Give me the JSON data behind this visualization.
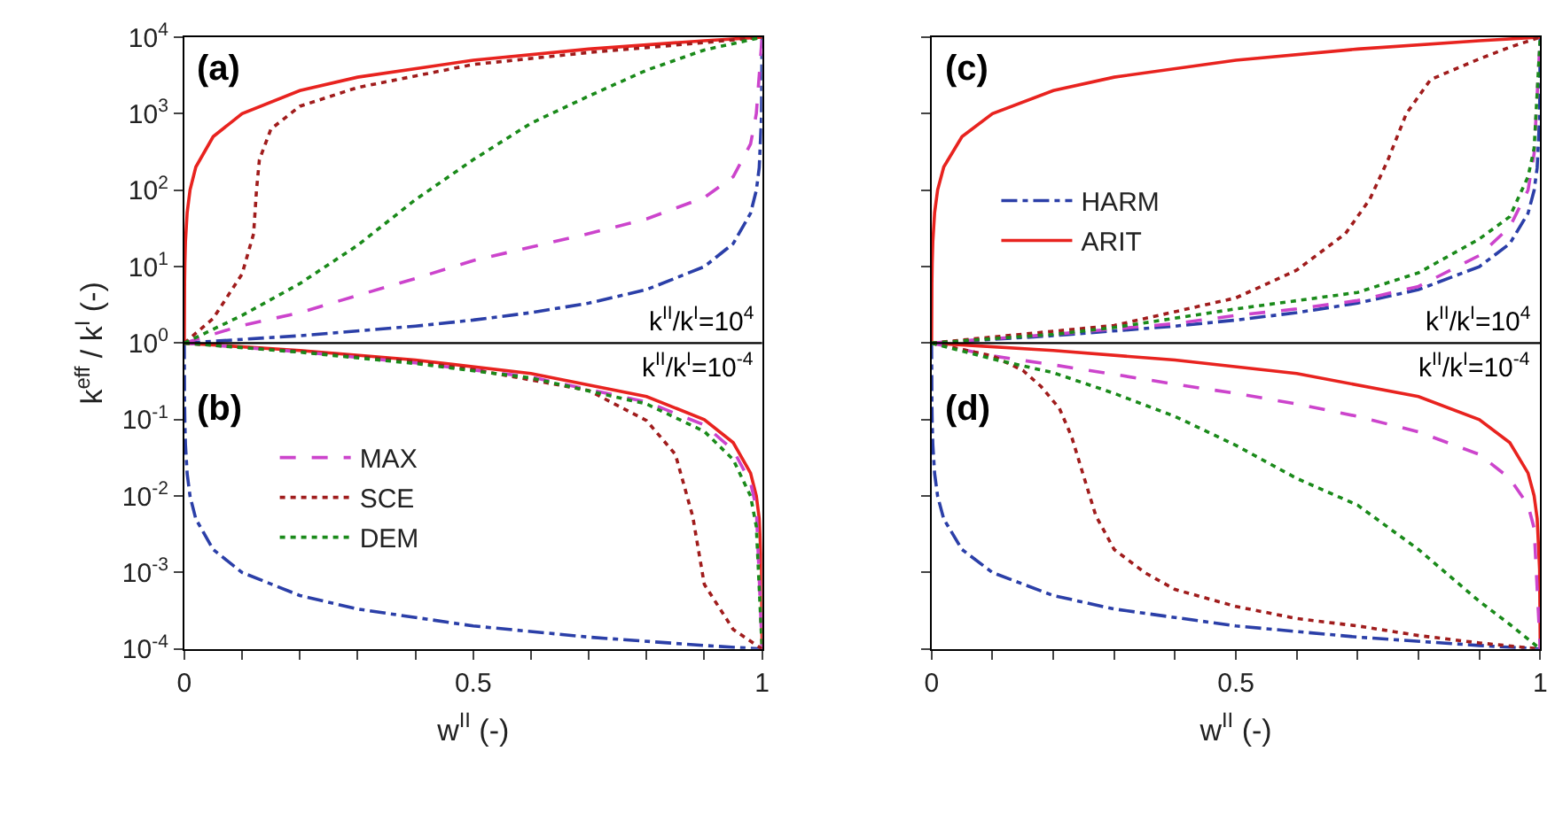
{
  "chart_data": [
    {
      "type": "line",
      "xlabel": "w$^{II}$ (-)",
      "ylabel": "k$^{eff}$ / k$^{I}$ (-)",
      "log": "y",
      "legend": "bottom left",
      "xlim": [
        0,
        1
      ],
      "ylim": [
        0.0001,
        10000
      ],
      "xticks": [
        0,
        {
          "value": 0.1,
          "label": null
        },
        {
          "value": 0.2,
          "label": null
        },
        {
          "value": 0.3,
          "label": null
        },
        {
          "value": 0.4,
          "label": null
        },
        0.5,
        {
          "value": 0.6,
          "label": null
        },
        {
          "value": 0.7,
          "label": null
        },
        {
          "value": 0.8,
          "label": null
        },
        {
          "value": 0.9,
          "label": null
        },
        1
      ],
      "yticks": [
        {
          "value": 0.0001,
          "label": "10$^{-4}$"
        },
        {
          "value": 0.001,
          "label": "10$^{-3}$"
        },
        {
          "value": 0.01,
          "label": "10$^{-2}$"
        },
        {
          "value": 0.1,
          "label": "10$^{-1}$"
        },
        {
          "value": 1,
          "label": "10$^{0}$"
        },
        {
          "value": 10,
          "label": "10$^{1}$"
        },
        {
          "value": 100,
          "label": "10$^{2}$"
        },
        {
          "value": 1000,
          "label": "10$^{3}$"
        },
        {
          "value": 10000,
          "label": "10$^{4}$"
        }
      ],
      "ref_lines": [
        {
          "axis": "y",
          "value": 1,
          "color": "#000000"
        }
      ],
      "annotations": [
        "(a)",
        "(b)",
        "k$^{II}$/k$^{I}$=10$^{4}$",
        "k$^{II}$/k$^{I}$=10$^{-4}$"
      ],
      "series": [
        {
          "color": "#2b3fa8",
          "line_style": "dashdot",
          "x": [
            0,
            0.2,
            0.4,
            0.5,
            0.6,
            0.7,
            0.8,
            0.9,
            0.95,
            0.98,
            0.99,
            0.995,
            0.999,
            1
          ],
          "values": [
            1,
            1.25,
            1.667,
            2.0,
            2.5,
            3.33,
            5.0,
            9.99,
            19.96,
            49.8,
            99,
            196,
            909,
            10000
          ]
        },
        {
          "color": "#2b3fa8",
          "line_style": "dashdot",
          "x": [
            0,
            0.0005,
            0.001,
            0.002,
            0.005,
            0.01,
            0.02,
            0.05,
            0.1,
            0.2,
            0.3,
            0.5,
            0.7,
            0.9,
            1
          ],
          "values": [
            1,
            0.167,
            0.0909,
            0.0476,
            0.0196,
            0.0099,
            0.005,
            0.002,
            0.001,
            0.0005,
            0.000333,
            0.0002,
            0.000143,
            0.000111,
            0.0001
          ]
        },
        {
          "color": "#e8231f",
          "line_style": "solid",
          "x": [
            0,
            0.0005,
            0.001,
            0.002,
            0.005,
            0.01,
            0.02,
            0.05,
            0.1,
            0.2,
            0.3,
            0.5,
            0.7,
            0.9,
            1
          ],
          "values": [
            1,
            6,
            11,
            21,
            51,
            101,
            201,
            501,
            1001,
            2001,
            3001,
            5000,
            7000,
            9000,
            10000
          ]
        },
        {
          "color": "#e8231f",
          "line_style": "solid",
          "x": [
            0,
            0.2,
            0.4,
            0.6,
            0.8,
            0.9,
            0.95,
            0.98,
            0.99,
            0.995,
            0.999,
            1
          ],
          "values": [
            1,
            0.8,
            0.6,
            0.4,
            0.2,
            0.1,
            0.05,
            0.02,
            0.0101,
            0.0051,
            0.0011,
            0.0001
          ]
        },
        {
          "name": "MAX",
          "color": "#cc44cc",
          "line_style": "dashed",
          "x": [
            0,
            0.1,
            0.2,
            0.3,
            0.4,
            0.5,
            0.6,
            0.7,
            0.8,
            0.9,
            0.95,
            0.98,
            0.99,
            1
          ],
          "values": [
            1,
            1.7,
            2.5,
            4.2,
            7,
            12,
            18,
            27,
            42,
            80,
            150,
            400,
            1000,
            10000
          ]
        },
        {
          "color": "#cc44cc",
          "line_style": "dashed",
          "x": [
            0,
            0.2,
            0.4,
            0.6,
            0.8,
            0.9,
            0.95,
            0.98,
            0.99,
            1
          ],
          "values": [
            1,
            0.77,
            0.55,
            0.36,
            0.17,
            0.085,
            0.04,
            0.015,
            0.007,
            0.0001
          ]
        },
        {
          "name": "SCE",
          "color": "#a01c1c",
          "line_style": "dotted",
          "x": [
            0,
            0.05,
            0.1,
            0.12,
            0.125,
            0.13,
            0.15,
            0.2,
            0.3,
            0.5,
            0.7,
            0.9,
            1
          ],
          "values": [
            1,
            2.1,
            8,
            27,
            100,
            250,
            630,
            1250,
            2200,
            4400,
            6300,
            8500,
            10000
          ]
        },
        {
          "color": "#a01c1c",
          "line_style": "dotted",
          "x": [
            0,
            0.2,
            0.4,
            0.5,
            0.6,
            0.7,
            0.8,
            0.85,
            0.88,
            0.9,
            0.95,
            1
          ],
          "values": [
            1,
            0.78,
            0.57,
            0.45,
            0.33,
            0.24,
            0.097,
            0.035,
            0.0054,
            0.0007,
            0.00018,
            0.0001
          ]
        },
        {
          "name": "DEM",
          "color": "#1a8a1a",
          "line_style": "dotted",
          "x": [
            0,
            0.1,
            0.2,
            0.3,
            0.4,
            0.5,
            0.6,
            0.7,
            0.8,
            0.9,
            1
          ],
          "values": [
            1,
            2.3,
            6,
            19,
            75,
            250,
            750,
            1700,
            3700,
            6800,
            10000
          ]
        },
        {
          "color": "#1a8a1a",
          "line_style": "dotted",
          "x": [
            0,
            0.2,
            0.4,
            0.6,
            0.8,
            0.9,
            0.95,
            0.98,
            0.99,
            1
          ],
          "values": [
            1,
            0.76,
            0.54,
            0.35,
            0.16,
            0.07,
            0.03,
            0.01,
            0.004,
            0.0001
          ]
        }
      ]
    },
    {
      "type": "line",
      "xlabel": "w$^{II}$ (-)",
      "log": "y",
      "legend": "top left",
      "tick_labels": "x",
      "xlim": [
        0,
        1
      ],
      "ylim": [
        0.0001,
        10000
      ],
      "xticks": [
        0,
        {
          "value": 0.1,
          "label": null
        },
        {
          "value": 0.2,
          "label": null
        },
        {
          "value": 0.3,
          "label": null
        },
        {
          "value": 0.4,
          "label": null
        },
        0.5,
        {
          "value": 0.6,
          "label": null
        },
        {
          "value": 0.7,
          "label": null
        },
        {
          "value": 0.8,
          "label": null
        },
        {
          "value": 0.9,
          "label": null
        },
        1
      ],
      "yticks": [
        {
          "value": 0.0001,
          "label": "10$^{-4}$"
        },
        {
          "value": 0.001,
          "label": "10$^{-3}$"
        },
        {
          "value": 0.01,
          "label": "10$^{-2}$"
        },
        {
          "value": 0.1,
          "label": "10$^{-1}$"
        },
        {
          "value": 1,
          "label": "10$^{0}$"
        },
        {
          "value": 10,
          "label": "10$^{1}$"
        },
        {
          "value": 100,
          "label": "10$^{2}$"
        },
        {
          "value": 1000,
          "label": "10$^{3}$"
        },
        {
          "value": 10000,
          "label": "10$^{4}$"
        }
      ],
      "ref_lines": [
        {
          "axis": "y",
          "value": 1,
          "color": "#000000"
        }
      ],
      "annotations": [
        "(c)",
        "(d)",
        "k$^{II}$/k$^{I}$=10$^{4}$",
        "k$^{II}$/k$^{I}$=10$^{-4}$"
      ],
      "series": [
        {
          "name": "HARM",
          "color": "#2b3fa8",
          "line_style": "dashdot",
          "x": [
            0,
            0.2,
            0.4,
            0.5,
            0.6,
            0.7,
            0.8,
            0.9,
            0.95,
            0.98,
            0.99,
            0.995,
            0.999,
            1
          ],
          "values": [
            1,
            1.25,
            1.667,
            2.0,
            2.5,
            3.33,
            5.0,
            9.99,
            19.96,
            49.8,
            99,
            196,
            909,
            10000
          ]
        },
        {
          "color": "#2b3fa8",
          "line_style": "dashdot",
          "x": [
            0,
            0.0005,
            0.001,
            0.002,
            0.005,
            0.01,
            0.02,
            0.05,
            0.1,
            0.2,
            0.3,
            0.5,
            0.7,
            0.9,
            1
          ],
          "values": [
            1,
            0.167,
            0.0909,
            0.0476,
            0.0196,
            0.0099,
            0.005,
            0.002,
            0.001,
            0.0005,
            0.000333,
            0.0002,
            0.000143,
            0.000111,
            0.0001
          ]
        },
        {
          "name": "ARIT",
          "color": "#e8231f",
          "line_style": "solid",
          "x": [
            0,
            0.0005,
            0.001,
            0.002,
            0.005,
            0.01,
            0.02,
            0.05,
            0.1,
            0.2,
            0.3,
            0.5,
            0.7,
            0.9,
            1
          ],
          "values": [
            1,
            6,
            11,
            21,
            51,
            101,
            201,
            501,
            1001,
            2001,
            3001,
            5000,
            7000,
            9000,
            10000
          ]
        },
        {
          "color": "#e8231f",
          "line_style": "solid",
          "x": [
            0,
            0.2,
            0.4,
            0.6,
            0.8,
            0.9,
            0.95,
            0.98,
            0.99,
            0.995,
            0.999,
            1
          ],
          "values": [
            1,
            0.8,
            0.6,
            0.4,
            0.2,
            0.1,
            0.05,
            0.02,
            0.0101,
            0.0051,
            0.0011,
            0.0001
          ]
        },
        {
          "color": "#cc44cc",
          "line_style": "dashed",
          "x": [
            0,
            0.2,
            0.4,
            0.5,
            0.6,
            0.7,
            0.8,
            0.9,
            0.95,
            0.98,
            0.99,
            1
          ],
          "values": [
            1,
            1.3,
            1.8,
            2.3,
            2.8,
            3.6,
            5.5,
            14,
            33,
            100,
            300,
            10000
          ]
        },
        {
          "color": "#cc44cc",
          "line_style": "dashed",
          "x": [
            0,
            0.1,
            0.2,
            0.3,
            0.4,
            0.5,
            0.6,
            0.7,
            0.8,
            0.9,
            0.95,
            0.98,
            0.99,
            1
          ],
          "values": [
            1,
            0.68,
            0.52,
            0.39,
            0.29,
            0.22,
            0.16,
            0.11,
            0.069,
            0.035,
            0.017,
            0.0076,
            0.0038,
            0.0001
          ]
        },
        {
          "color": "#a01c1c",
          "line_style": "dotted",
          "x": [
            0,
            0.1,
            0.3,
            0.5,
            0.6,
            0.68,
            0.72,
            0.75,
            0.78,
            0.82,
            0.9,
            0.95,
            1
          ],
          "values": [
            1,
            1.2,
            1.7,
            3.9,
            9,
            27,
            76,
            250,
            1000,
            2800,
            5200,
            7400,
            10000
          ]
        },
        {
          "color": "#a01c1c",
          "line_style": "dotted",
          "x": [
            0,
            0.1,
            0.15,
            0.18,
            0.21,
            0.23,
            0.25,
            0.27,
            0.3,
            0.35,
            0.4,
            0.5,
            0.6,
            0.7,
            0.8,
            0.9,
            1
          ],
          "values": [
            1,
            0.68,
            0.44,
            0.27,
            0.14,
            0.06,
            0.018,
            0.0055,
            0.002,
            0.001,
            0.0006,
            0.00036,
            0.00025,
            0.0002,
            0.00015,
            0.00012,
            0.0001
          ]
        },
        {
          "color": "#1a8a1a",
          "line_style": "dotted",
          "x": [
            0,
            0.2,
            0.3,
            0.5,
            0.7,
            0.8,
            0.9,
            0.95,
            0.98,
            0.99,
            1
          ],
          "values": [
            1,
            1.3,
            1.6,
            2.8,
            4.6,
            8.3,
            23,
            45,
            150,
            350,
            10000
          ]
        },
        {
          "color": "#1a8a1a",
          "line_style": "dotted",
          "x": [
            0,
            0.1,
            0.2,
            0.3,
            0.4,
            0.5,
            0.6,
            0.7,
            0.8,
            0.9,
            0.95,
            1
          ],
          "values": [
            1,
            0.62,
            0.41,
            0.22,
            0.11,
            0.046,
            0.017,
            0.0076,
            0.002,
            0.00042,
            0.00021,
            0.0001
          ]
        }
      ]
    }
  ]
}
